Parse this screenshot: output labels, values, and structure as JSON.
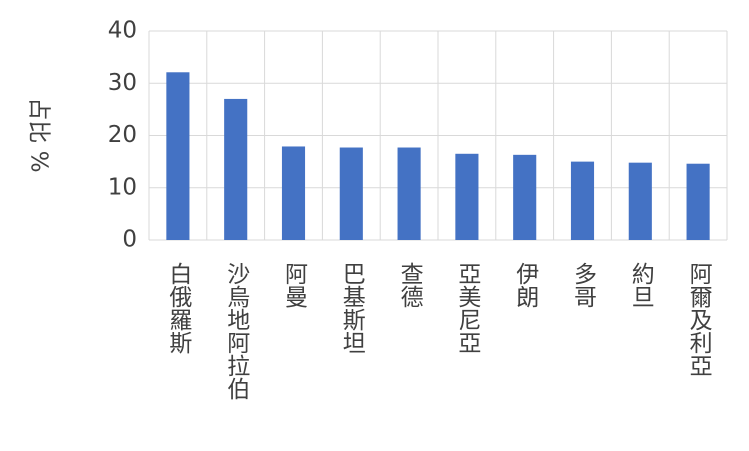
{
  "chart_data": {
    "type": "bar",
    "y_label": "占比 %",
    "categories": [
      "白俄羅斯",
      "沙烏地阿拉伯",
      "阿曼",
      "巴基斯坦",
      "查德",
      "亞美尼亞",
      "伊朗",
      "多哥",
      "約旦",
      "阿爾及利亞"
    ],
    "values": [
      32.1,
      27,
      17.9,
      17.7,
      17.7,
      16.5,
      16.3,
      15,
      14.8,
      14.6
    ],
    "color": "#4472c4",
    "ylim": [
      0,
      40
    ],
    "yticks": [
      0,
      10,
      20,
      30,
      40
    ],
    "grid": true
  }
}
